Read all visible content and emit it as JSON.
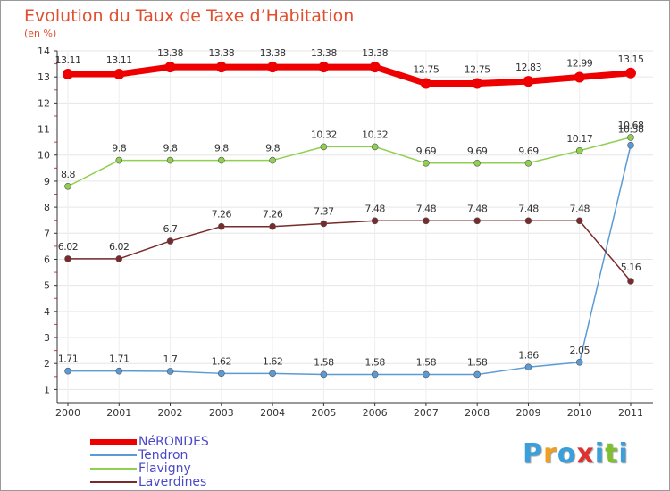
{
  "title": "Evolution du Taux de Taxe d’Habitation",
  "unit_label": "(en %)",
  "logo": {
    "letters": [
      "P",
      "r",
      "o",
      "x",
      "i",
      "t",
      "i"
    ],
    "colors": [
      "#3aa0dc",
      "#f0a020",
      "#3aa0dc",
      "#e03030",
      "#3aa0dc",
      "#80c030",
      "#3aa0dc"
    ]
  },
  "chart_data": {
    "type": "line",
    "title": "Evolution du Taux de Taxe d’Habitation",
    "ylabel": "(en %)",
    "xlabel": "",
    "x": [
      "2000",
      "2001",
      "2002",
      "2003",
      "2004",
      "2005",
      "2006",
      "2007",
      "2008",
      "2009",
      "2010",
      "2011"
    ],
    "ylim": [
      0.5,
      14
    ],
    "yticks": [
      "1",
      "2",
      "3",
      "4",
      "5",
      "6",
      "7",
      "8",
      "9",
      "10",
      "11",
      "12",
      "13",
      "14"
    ],
    "legend_position": "bottom-left",
    "series": [
      {
        "name": "NéRONDES",
        "color": "#ee0000",
        "values": [
          13.11,
          13.11,
          13.38,
          13.38,
          13.38,
          13.38,
          13.38,
          12.75,
          12.75,
          12.83,
          12.99,
          13.15
        ],
        "labels": [
          "13.11",
          "13.11",
          "13.38",
          "13.38",
          "13.38",
          "13.38",
          "13.38",
          "12.75",
          "12.75",
          "12.83",
          "12.99",
          "13.15"
        ]
      },
      {
        "name": "Tendron",
        "color": "#5b9bd5",
        "values": [
          1.71,
          1.71,
          1.7,
          1.62,
          1.62,
          1.58,
          1.58,
          1.58,
          1.58,
          1.86,
          2.05,
          10.38
        ],
        "labels": [
          "1.71",
          "1.71",
          "1.7",
          "1.62",
          "1.62",
          "1.58",
          "1.58",
          "1.58",
          "1.58",
          "1.86",
          "2.05",
          "10.38"
        ]
      },
      {
        "name": "Flavigny",
        "color": "#90d050",
        "values": [
          8.8,
          9.8,
          9.8,
          9.8,
          9.8,
          10.32,
          10.32,
          9.69,
          9.69,
          9.69,
          10.17,
          10.68
        ],
        "labels": [
          "8.8",
          "9.8",
          "9.8",
          "9.8",
          "9.8",
          "10.32",
          "10.32",
          "9.69",
          "9.69",
          "9.69",
          "10.17",
          "10.68"
        ]
      },
      {
        "name": "Laverdines",
        "color": "#7a2a2a",
        "values": [
          6.02,
          6.02,
          6.7,
          7.26,
          7.26,
          7.37,
          7.48,
          7.48,
          7.48,
          7.48,
          7.48,
          5.16
        ],
        "labels": [
          "6.02",
          "6.02",
          "6.7",
          "7.26",
          "7.26",
          "7.37",
          "7.48",
          "7.48",
          "7.48",
          "7.48",
          "7.48",
          "5.16"
        ]
      }
    ]
  }
}
